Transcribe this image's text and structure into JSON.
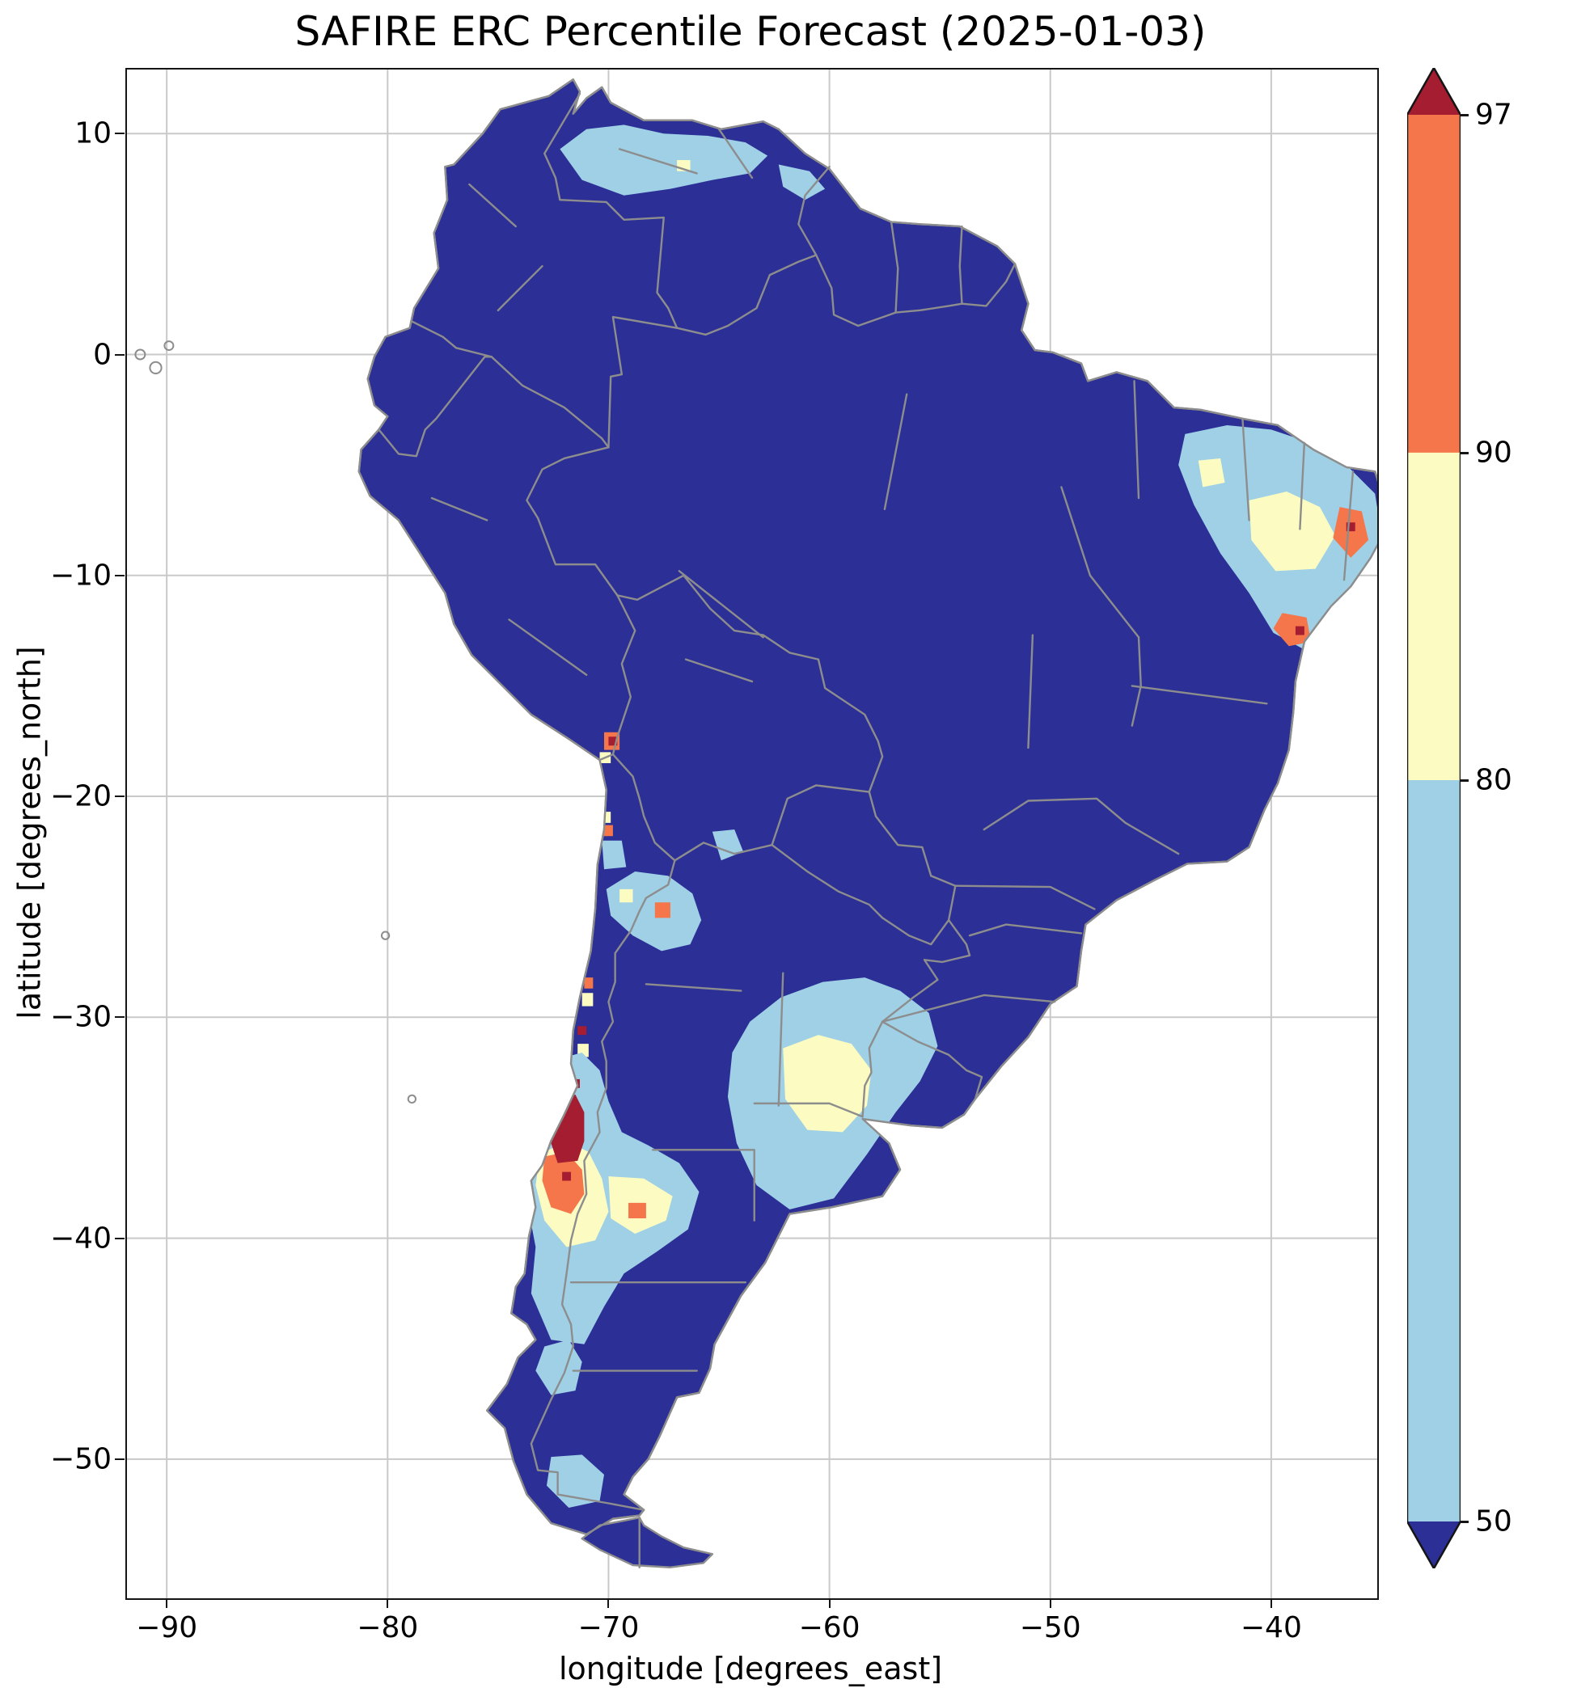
{
  "chart_data": {
    "type": "heatmap",
    "title": "SAFIRE ERC Percentile Forecast (2025-01-03)",
    "xlabel": "longitude [degrees_east]",
    "ylabel": "latitude [degrees_north]",
    "xlim": [
      -91.8,
      -35.2
    ],
    "ylim": [
      -56.3,
      12.9
    ],
    "xticks": [
      {
        "value": -90,
        "label": "−90"
      },
      {
        "value": -80,
        "label": "−80"
      },
      {
        "value": -70,
        "label": "−70"
      },
      {
        "value": -60,
        "label": "−60"
      },
      {
        "value": -50,
        "label": "−50"
      },
      {
        "value": -40,
        "label": "−40"
      }
    ],
    "yticks": [
      {
        "value": 10,
        "label": "10"
      },
      {
        "value": 0,
        "label": "0"
      },
      {
        "value": -10,
        "label": "−10"
      },
      {
        "value": -20,
        "label": "−20"
      },
      {
        "value": -30,
        "label": "−30"
      },
      {
        "value": -40,
        "label": "−40"
      },
      {
        "value": -50,
        "label": "−50"
      }
    ],
    "grid": true,
    "grid_color": "#c9c9c9",
    "legend_position": "right-colorbar",
    "colorbar": {
      "orientation": "vertical",
      "extend": "both",
      "tick_levels": [
        {
          "value": 97,
          "frac": 0.0
        },
        {
          "value": 90,
          "frac": 0.2402
        },
        {
          "value": 80,
          "frac": 0.473
        },
        {
          "value": 50,
          "frac": 1.0
        }
      ],
      "segments": [
        {
          "band": "90-97",
          "color": "#f4764a",
          "from": 0.0,
          "to": 0.2402
        },
        {
          "band": "80-90",
          "color": "#fcfcc2",
          "from": 0.2402,
          "to": 0.473
        },
        {
          "band": "50-80",
          "color": "#9fd0e6",
          "from": 0.473,
          "to": 1.0
        }
      ],
      "over_color": "#a41d31",
      "under_color": "#2b2f96"
    },
    "band_colors": {
      "<50": "#2b2f96",
      "50-80": "#9fd0e6",
      "80-90": "#fcfcc2",
      "90-97": "#f4764a",
      ">97": "#a41d31"
    },
    "base_band": "<50",
    "regions": [
      {
        "name": "venezuela-llanos",
        "band": "50-80",
        "points": [
          [
            -72.2,
            9.3
          ],
          [
            -71.0,
            10.2
          ],
          [
            -69.3,
            10.4
          ],
          [
            -67.5,
            10.0
          ],
          [
            -65.5,
            9.9
          ],
          [
            -63.8,
            9.6
          ],
          [
            -62.8,
            9.0
          ],
          [
            -63.6,
            8.2
          ],
          [
            -65.3,
            7.9
          ],
          [
            -67.2,
            7.5
          ],
          [
            -69.3,
            7.2
          ],
          [
            -71.2,
            7.9
          ]
        ]
      },
      {
        "name": "venezuela-llanos-east",
        "band": "50-80",
        "points": [
          [
            -62.3,
            8.6
          ],
          [
            -60.9,
            8.3
          ],
          [
            -60.2,
            7.5
          ],
          [
            -61.1,
            7.0
          ],
          [
            -62.1,
            7.6
          ]
        ]
      },
      {
        "name": "venezuela-yellow-cell",
        "band": "80-90",
        "points": [
          [
            -66.9,
            8.8
          ],
          [
            -66.3,
            8.8
          ],
          [
            -66.3,
            8.3
          ],
          [
            -66.9,
            8.3
          ]
        ]
      },
      {
        "name": "ne-brazil-blue",
        "band": "50-80",
        "points": [
          [
            -44.2,
            -5.0
          ],
          [
            -43.9,
            -3.6
          ],
          [
            -42.0,
            -3.2
          ],
          [
            -40.0,
            -3.4
          ],
          [
            -38.2,
            -4.0
          ],
          [
            -36.6,
            -5.0
          ],
          [
            -35.3,
            -6.3
          ],
          [
            -35.0,
            -8.2
          ],
          [
            -35.8,
            -10.2
          ],
          [
            -37.2,
            -11.8
          ],
          [
            -38.6,
            -13.3
          ],
          [
            -39.9,
            -12.6
          ],
          [
            -41.0,
            -10.8
          ],
          [
            -42.3,
            -9.0
          ],
          [
            -43.5,
            -6.8
          ]
        ]
      },
      {
        "name": "ne-brazil-yellow-sertao",
        "band": "80-90",
        "points": [
          [
            -41.0,
            -6.6
          ],
          [
            -39.3,
            -6.2
          ],
          [
            -37.8,
            -6.9
          ],
          [
            -37.1,
            -8.2
          ],
          [
            -38.0,
            -9.7
          ],
          [
            -39.8,
            -9.8
          ],
          [
            -40.9,
            -8.4
          ]
        ]
      },
      {
        "name": "ne-brazil-yellow-piaui",
        "band": "80-90",
        "points": [
          [
            -43.3,
            -4.8
          ],
          [
            -42.3,
            -4.7
          ],
          [
            -42.1,
            -5.8
          ],
          [
            -43.1,
            -6.0
          ]
        ]
      },
      {
        "name": "ne-brazil-orange-coast",
        "band": "90-97",
        "points": [
          [
            -36.9,
            -6.9
          ],
          [
            -35.9,
            -7.1
          ],
          [
            -35.6,
            -8.4
          ],
          [
            -36.4,
            -9.2
          ],
          [
            -37.2,
            -8.3
          ]
        ]
      },
      {
        "name": "ne-brazil-orange-bahia",
        "band": "90-97",
        "points": [
          [
            -39.5,
            -11.7
          ],
          [
            -38.4,
            -11.9
          ],
          [
            -38.2,
            -13.0
          ],
          [
            -39.2,
            -13.2
          ],
          [
            -39.9,
            -12.4
          ]
        ]
      },
      {
        "name": "ne-brazil-red-cell-1",
        "band": ">97",
        "points": [
          [
            -36.6,
            -7.6
          ],
          [
            -36.2,
            -7.6
          ],
          [
            -36.2,
            -8.0
          ],
          [
            -36.6,
            -8.0
          ]
        ]
      },
      {
        "name": "ne-brazil-red-cell-2",
        "band": ">97",
        "points": [
          [
            -38.9,
            -12.3
          ],
          [
            -38.5,
            -12.3
          ],
          [
            -38.5,
            -12.7
          ],
          [
            -38.9,
            -12.7
          ]
        ]
      },
      {
        "name": "tacna-orange",
        "band": "90-97",
        "points": [
          [
            -70.2,
            -17.1
          ],
          [
            -69.5,
            -17.1
          ],
          [
            -69.5,
            -17.9
          ],
          [
            -70.2,
            -17.9
          ]
        ]
      },
      {
        "name": "tacna-red-cell",
        "band": ">97",
        "points": [
          [
            -70.0,
            -17.3
          ],
          [
            -69.6,
            -17.3
          ],
          [
            -69.6,
            -17.7
          ],
          [
            -70.0,
            -17.7
          ]
        ]
      },
      {
        "name": "arica-yellow",
        "band": "80-90",
        "points": [
          [
            -70.4,
            -18.0
          ],
          [
            -69.9,
            -18.0
          ],
          [
            -69.9,
            -18.5
          ],
          [
            -70.4,
            -18.5
          ]
        ]
      },
      {
        "name": "tarapaca-yellow-cell",
        "band": "80-90",
        "points": [
          [
            -70.3,
            -20.7
          ],
          [
            -69.9,
            -20.7
          ],
          [
            -69.9,
            -21.2
          ],
          [
            -70.3,
            -21.2
          ]
        ]
      },
      {
        "name": "tarapaca-orange-cell",
        "band": "90-97",
        "points": [
          [
            -70.2,
            -21.3
          ],
          [
            -69.8,
            -21.3
          ],
          [
            -69.8,
            -21.8
          ],
          [
            -70.2,
            -21.8
          ]
        ]
      },
      {
        "name": "antofagasta-blue",
        "band": "50-80",
        "points": [
          [
            -70.3,
            -22.0
          ],
          [
            -69.4,
            -22.0
          ],
          [
            -69.2,
            -23.2
          ],
          [
            -70.2,
            -23.3
          ]
        ]
      },
      {
        "name": "atacama-puna-blue",
        "band": "50-80",
        "points": [
          [
            -70.1,
            -24.2
          ],
          [
            -68.8,
            -23.4
          ],
          [
            -67.3,
            -23.6
          ],
          [
            -66.2,
            -24.4
          ],
          [
            -65.8,
            -25.6
          ],
          [
            -66.3,
            -26.7
          ],
          [
            -67.6,
            -27.0
          ],
          [
            -68.9,
            -26.3
          ],
          [
            -69.9,
            -25.4
          ]
        ]
      },
      {
        "name": "puna-orange-cell",
        "band": "90-97",
        "points": [
          [
            -67.9,
            -24.8
          ],
          [
            -67.2,
            -24.8
          ],
          [
            -67.2,
            -25.5
          ],
          [
            -67.9,
            -25.5
          ]
        ]
      },
      {
        "name": "atacama-yellow-cell",
        "band": "80-90",
        "points": [
          [
            -69.5,
            -24.2
          ],
          [
            -68.9,
            -24.2
          ],
          [
            -68.9,
            -24.8
          ],
          [
            -69.5,
            -24.8
          ]
        ]
      },
      {
        "name": "south-bolivia-blue",
        "band": "50-80",
        "points": [
          [
            -65.3,
            -21.6
          ],
          [
            -64.3,
            -21.5
          ],
          [
            -63.9,
            -22.5
          ],
          [
            -64.9,
            -22.9
          ]
        ]
      },
      {
        "name": "coquimbo-orange-cell",
        "band": "90-97",
        "points": [
          [
            -71.1,
            -28.2
          ],
          [
            -70.7,
            -28.2
          ],
          [
            -70.7,
            -28.7
          ],
          [
            -71.1,
            -28.7
          ]
        ]
      },
      {
        "name": "coquimbo-yellow-cell",
        "band": "80-90",
        "points": [
          [
            -71.2,
            -28.9
          ],
          [
            -70.7,
            -28.9
          ],
          [
            -70.7,
            -29.5
          ],
          [
            -71.2,
            -29.5
          ]
        ]
      },
      {
        "name": "coquimbo-red-cell",
        "band": ">97",
        "points": [
          [
            -71.4,
            -30.4
          ],
          [
            -71.0,
            -30.4
          ],
          [
            -71.0,
            -30.8
          ],
          [
            -71.4,
            -30.8
          ]
        ]
      },
      {
        "name": "valparaiso-yellow-cell",
        "band": "80-90",
        "points": [
          [
            -71.4,
            -31.2
          ],
          [
            -70.9,
            -31.2
          ],
          [
            -70.9,
            -31.8
          ],
          [
            -71.4,
            -31.8
          ]
        ]
      },
      {
        "name": "central-chile-patagonia-blue",
        "band": "50-80",
        "points": [
          [
            -72.3,
            -31.9
          ],
          [
            -71.2,
            -31.6
          ],
          [
            -70.4,
            -32.4
          ],
          [
            -70.0,
            -33.8
          ],
          [
            -69.4,
            -35.2
          ],
          [
            -68.2,
            -35.8
          ],
          [
            -66.8,
            -36.6
          ],
          [
            -65.9,
            -37.9
          ],
          [
            -66.4,
            -39.6
          ],
          [
            -67.8,
            -40.6
          ],
          [
            -69.3,
            -41.6
          ],
          [
            -70.2,
            -43.1
          ],
          [
            -71.1,
            -44.8
          ],
          [
            -72.6,
            -44.6
          ],
          [
            -73.5,
            -42.5
          ],
          [
            -73.3,
            -40.4
          ],
          [
            -73.7,
            -38.3
          ],
          [
            -73.4,
            -36.2
          ],
          [
            -72.8,
            -34.1
          ]
        ]
      },
      {
        "name": "araucania-yellow",
        "band": "80-90",
        "points": [
          [
            -73.1,
            -36.2
          ],
          [
            -71.9,
            -35.6
          ],
          [
            -70.9,
            -36.1
          ],
          [
            -70.3,
            -37.3
          ],
          [
            -70.0,
            -38.8
          ],
          [
            -70.6,
            -40.1
          ],
          [
            -71.9,
            -40.4
          ],
          [
            -72.9,
            -39.2
          ],
          [
            -73.3,
            -37.6
          ]
        ]
      },
      {
        "name": "neuquen-yellow",
        "band": "80-90",
        "points": [
          [
            -70.0,
            -37.2
          ],
          [
            -68.4,
            -37.3
          ],
          [
            -67.1,
            -38.1
          ],
          [
            -67.4,
            -39.2
          ],
          [
            -68.8,
            -39.8
          ],
          [
            -69.9,
            -39.1
          ]
        ]
      },
      {
        "name": "biobio-orange",
        "band": "90-97",
        "points": [
          [
            -72.9,
            -36.3
          ],
          [
            -71.9,
            -36.1
          ],
          [
            -71.2,
            -36.9
          ],
          [
            -71.1,
            -38.0
          ],
          [
            -71.7,
            -38.9
          ],
          [
            -72.6,
            -38.6
          ],
          [
            -73.0,
            -37.4
          ]
        ]
      },
      {
        "name": "neuquen-orange-cell",
        "band": "90-97",
        "points": [
          [
            -69.1,
            -38.4
          ],
          [
            -68.3,
            -38.4
          ],
          [
            -68.3,
            -39.1
          ],
          [
            -69.1,
            -39.1
          ]
        ]
      },
      {
        "name": "central-chile-red",
        "band": ">97",
        "points": [
          [
            -72.4,
            -33.7
          ],
          [
            -71.5,
            -33.5
          ],
          [
            -71.1,
            -34.3
          ],
          [
            -71.1,
            -35.6
          ],
          [
            -71.4,
            -36.5
          ],
          [
            -72.3,
            -36.6
          ],
          [
            -72.7,
            -35.4
          ],
          [
            -72.6,
            -34.4
          ]
        ]
      },
      {
        "name": "valparaiso-red-cell",
        "band": ">97",
        "points": [
          [
            -71.7,
            -32.8
          ],
          [
            -71.3,
            -32.8
          ],
          [
            -71.3,
            -33.2
          ],
          [
            -71.7,
            -33.2
          ]
        ]
      },
      {
        "name": "biobio-red-cell",
        "band": ">97",
        "points": [
          [
            -72.1,
            -37.0
          ],
          [
            -71.7,
            -37.0
          ],
          [
            -71.7,
            -37.4
          ],
          [
            -72.1,
            -37.4
          ]
        ]
      },
      {
        "name": "pampas-blue",
        "band": "50-80",
        "points": [
          [
            -64.4,
            -31.6
          ],
          [
            -63.6,
            -30.2
          ],
          [
            -62.2,
            -29.1
          ],
          [
            -60.3,
            -28.4
          ],
          [
            -58.4,
            -28.2
          ],
          [
            -56.8,
            -28.8
          ],
          [
            -55.5,
            -29.8
          ],
          [
            -55.1,
            -31.3
          ],
          [
            -55.9,
            -32.9
          ],
          [
            -57.0,
            -34.3
          ],
          [
            -58.3,
            -36.2
          ],
          [
            -59.8,
            -38.2
          ],
          [
            -61.8,
            -38.7
          ],
          [
            -63.3,
            -37.6
          ],
          [
            -64.2,
            -35.7
          ],
          [
            -64.6,
            -33.6
          ]
        ]
      },
      {
        "name": "pampas-yellow",
        "band": "80-90",
        "points": [
          [
            -62.1,
            -31.4
          ],
          [
            -60.5,
            -30.8
          ],
          [
            -59.0,
            -31.2
          ],
          [
            -58.1,
            -32.4
          ],
          [
            -58.3,
            -34.0
          ],
          [
            -59.4,
            -35.2
          ],
          [
            -61.0,
            -35.1
          ],
          [
            -62.0,
            -33.7
          ]
        ]
      },
      {
        "name": "aysen-blue",
        "band": "50-80",
        "points": [
          [
            -72.9,
            -44.9
          ],
          [
            -71.8,
            -44.6
          ],
          [
            -71.2,
            -45.6
          ],
          [
            -71.5,
            -46.9
          ],
          [
            -72.6,
            -47.1
          ],
          [
            -73.3,
            -46.0
          ]
        ]
      },
      {
        "name": "magallanes-blue",
        "band": "50-80",
        "points": [
          [
            -72.6,
            -49.9
          ],
          [
            -71.2,
            -49.8
          ],
          [
            -70.2,
            -50.7
          ],
          [
            -70.4,
            -51.9
          ],
          [
            -71.8,
            -52.2
          ],
          [
            -72.8,
            -51.2
          ]
        ]
      }
    ]
  }
}
